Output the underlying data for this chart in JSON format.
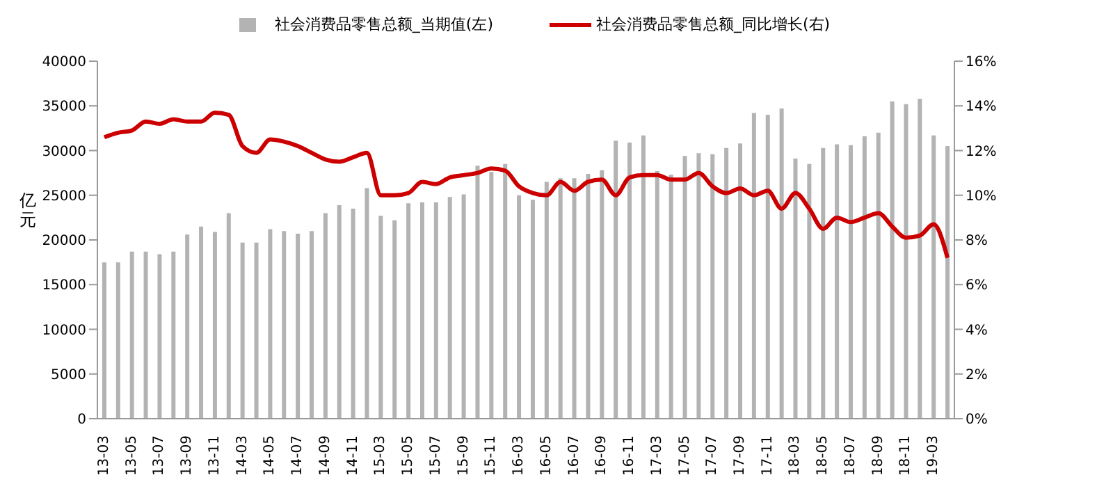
{
  "chart_data": {
    "type": "bar",
    "ylabel": "亿元",
    "categories": [
      "13-03",
      null,
      "13-05",
      null,
      "13-07",
      null,
      "13-09",
      null,
      "13-11",
      null,
      "14-03",
      null,
      "14-05",
      null,
      "14-07",
      null,
      "14-09",
      null,
      "14-11",
      null,
      "15-03",
      null,
      "15-05",
      null,
      "15-07",
      null,
      "15-09",
      null,
      "15-11",
      null,
      "16-03",
      null,
      "16-05",
      null,
      "16-07",
      null,
      "16-09",
      null,
      "16-11",
      null,
      "17-03",
      null,
      "17-05",
      null,
      "17-07",
      null,
      "17-09",
      null,
      "17-11",
      null,
      "18-03",
      null,
      "18-05",
      null,
      "18-07",
      null,
      "18-09",
      null,
      "18-11",
      null,
      "19-03",
      null
    ],
    "series": [
      {
        "name": "社会消费品零售总额_当期值(左)",
        "color": "#b3b3b3",
        "values": [
          17500,
          17500,
          18700,
          18700,
          18400,
          18700,
          20600,
          21500,
          20900,
          23000,
          19700,
          19700,
          21200,
          21000,
          20700,
          21000,
          23000,
          23900,
          23500,
          25800,
          22700,
          22200,
          24100,
          24200,
          24200,
          24800,
          25100,
          28300,
          27600,
          28500,
          25000,
          24500,
          26500,
          26900,
          26900,
          27400,
          27800,
          31100,
          30900,
          31700,
          27700,
          27300,
          29400,
          29700,
          29600,
          30300,
          30800,
          34200,
          34000,
          34700,
          29100,
          28500,
          30300,
          30700,
          30600,
          31600,
          32000,
          35500,
          35200,
          35800,
          31700,
          30500
        ]
      },
      {
        "name": "社会消费品零售总额_同比增长(右)",
        "type": "line",
        "axis": "y2",
        "color": "#cc0000",
        "values": [
          12.6,
          12.8,
          12.9,
          13.3,
          13.2,
          13.4,
          13.3,
          13.3,
          13.7,
          13.6,
          12.2,
          11.9,
          12.5,
          12.4,
          12.2,
          11.9,
          11.6,
          11.5,
          11.7,
          11.9,
          10.0,
          10.0,
          10.1,
          10.6,
          10.5,
          10.8,
          10.9,
          11.0,
          11.2,
          11.1,
          10.4,
          10.1,
          10.0,
          10.6,
          10.2,
          10.6,
          10.7,
          10.0,
          10.8,
          10.9,
          10.9,
          10.7,
          10.7,
          11.0,
          10.4,
          10.1,
          10.3,
          10.0,
          10.2,
          9.4,
          10.1,
          9.4,
          8.5,
          9.0,
          8.8,
          9.0,
          9.2,
          8.6,
          8.1,
          8.2,
          8.7,
          7.2
        ]
      }
    ],
    "ylim": [
      0,
      40000
    ],
    "yticks": [
      0,
      5000,
      10000,
      15000,
      20000,
      25000,
      30000,
      35000,
      40000
    ],
    "y2lim": [
      0,
      16
    ],
    "y2ticks": [
      {
        "value": 0,
        "label": "0%"
      },
      {
        "value": 2,
        "label": "2%"
      },
      {
        "value": 4,
        "label": "4%"
      },
      {
        "value": 6,
        "label": "6%"
      },
      {
        "value": 8,
        "label": "8%"
      },
      {
        "value": 10,
        "label": "10%"
      },
      {
        "value": 12,
        "label": "12%"
      },
      {
        "value": 14,
        "label": "14%"
      },
      {
        "value": 16,
        "label": "16%"
      }
    ],
    "legend": "top",
    "grid": false,
    "marker": "none"
  }
}
